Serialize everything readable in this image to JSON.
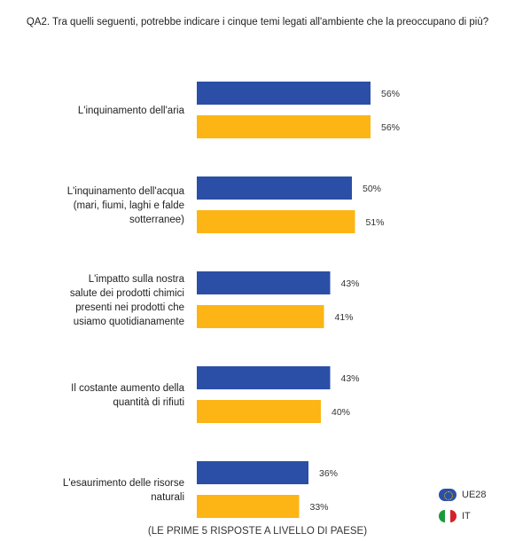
{
  "title": "QA2. Tra quelli seguenti, potrebbe indicare i cinque temi legati all'ambiente che la preoccupano di più?",
  "footnote": "(LE PRIME 5 RISPOSTE A LIVELLO DI PAESE)",
  "colors": {
    "ue28": "#2b4fa6",
    "it": "#fdb515",
    "it_flag_green": "#1a9a3a",
    "it_flag_white": "#ffffff",
    "it_flag_red": "#d2232a"
  },
  "legend": {
    "ue28": "UE28",
    "it": "IT"
  },
  "icons": {
    "ue28": "eu-flag-icon",
    "it": "italy-flag-icon"
  },
  "chart_data": {
    "type": "bar",
    "orientation": "horizontal",
    "categories": [
      [
        "L'inquinamento dell'aria"
      ],
      [
        "L'inquinamento dell'acqua",
        "(mari, fiumi, laghi e falde",
        "sotterranee)"
      ],
      [
        "L'impatto sulla nostra",
        "salute dei prodotti chimici",
        "presenti nei prodotti che",
        "usiamo quotidianamente"
      ],
      [
        "Il costante aumento della",
        "quantità di rifiuti"
      ],
      [
        "L'esaurimento delle risorse",
        "naturali"
      ]
    ],
    "series": [
      {
        "name": "UE28",
        "values": [
          56,
          50,
          43,
          43,
          36
        ]
      },
      {
        "name": "IT",
        "values": [
          56,
          51,
          41,
          40,
          33
        ]
      }
    ],
    "value_suffix": "%",
    "xlim": [
      0,
      100
    ],
    "grid": false,
    "legend_position": "bottom-right"
  }
}
